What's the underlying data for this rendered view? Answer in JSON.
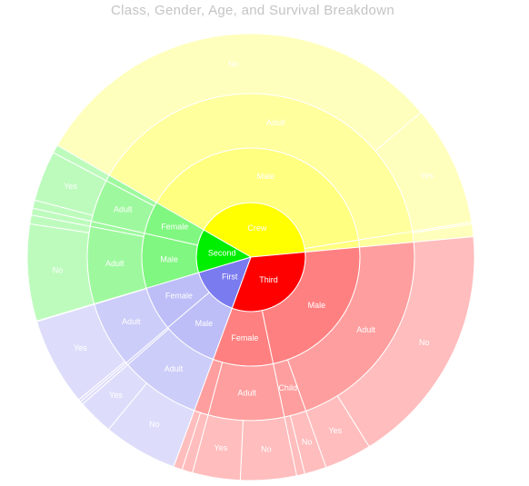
{
  "chart_data": {
    "type": "sunburst",
    "title": "Class, Gender, Age, and Survival Breakdown",
    "levels": [
      "Class",
      "Gender",
      "Age",
      "Survived"
    ],
    "colors": {
      "Crew": "#ffff00",
      "First": "#7b7bf0",
      "Second": "#00ee00",
      "Third": "#ff0000"
    },
    "tree": [
      {
        "name": "Crew",
        "children": [
          {
            "name": "Male",
            "children": [
              {
                "name": "Adult",
                "children": [
                  {
                    "name": "No",
                    "value": 670
                  },
                  {
                    "name": "Yes",
                    "value": 192
                  }
                ]
              }
            ]
          },
          {
            "name": "Female",
            "children": [
              {
                "name": "Adult",
                "children": [
                  {
                    "name": "No",
                    "value": 3
                  },
                  {
                    "name": "Yes",
                    "value": 20
                  }
                ]
              }
            ]
          }
        ]
      },
      {
        "name": "Third",
        "children": [
          {
            "name": "Male",
            "children": [
              {
                "name": "Adult",
                "children": [
                  {
                    "name": "No",
                    "value": 387
                  },
                  {
                    "name": "Yes",
                    "value": 75
                  }
                ]
              },
              {
                "name": "Child",
                "children": [
                  {
                    "name": "No",
                    "value": 35
                  },
                  {
                    "name": "Yes",
                    "value": 13
                  }
                ]
              }
            ]
          },
          {
            "name": "Female",
            "children": [
              {
                "name": "Adult",
                "children": [
                  {
                    "name": "No",
                    "value": 89
                  },
                  {
                    "name": "Yes",
                    "value": 76
                  }
                ]
              },
              {
                "name": "Child",
                "children": [
                  {
                    "name": "No",
                    "value": 17
                  },
                  {
                    "name": "Yes",
                    "value": 14
                  }
                ]
              }
            ]
          }
        ]
      },
      {
        "name": "First",
        "children": [
          {
            "name": "Male",
            "children": [
              {
                "name": "Adult",
                "children": [
                  {
                    "name": "No",
                    "value": 118
                  },
                  {
                    "name": "Yes",
                    "value": 57
                  }
                ]
              },
              {
                "name": "Child",
                "children": [
                  {
                    "name": "Yes",
                    "value": 5
                  }
                ]
              }
            ]
          },
          {
            "name": "Female",
            "children": [
              {
                "name": "Adult",
                "children": [
                  {
                    "name": "No",
                    "value": 4
                  },
                  {
                    "name": "Yes",
                    "value": 140
                  }
                ]
              },
              {
                "name": "Child",
                "children": [
                  {
                    "name": "Yes",
                    "value": 1
                  }
                ]
              }
            ]
          }
        ]
      },
      {
        "name": "Second",
        "children": [
          {
            "name": "Male",
            "children": [
              {
                "name": "Adult",
                "children": [
                  {
                    "name": "No",
                    "value": 154
                  },
                  {
                    "name": "Yes",
                    "value": 14
                  }
                ]
              },
              {
                "name": "Child",
                "children": [
                  {
                    "name": "Yes",
                    "value": 11
                  }
                ]
              }
            ]
          },
          {
            "name": "Female",
            "children": [
              {
                "name": "Adult",
                "children": [
                  {
                    "name": "No",
                    "value": 13
                  },
                  {
                    "name": "Yes",
                    "value": 80
                  }
                ]
              },
              {
                "name": "Child",
                "children": [
                  {
                    "name": "Yes",
                    "value": 13
                  }
                ]
              }
            ]
          }
        ]
      }
    ]
  }
}
